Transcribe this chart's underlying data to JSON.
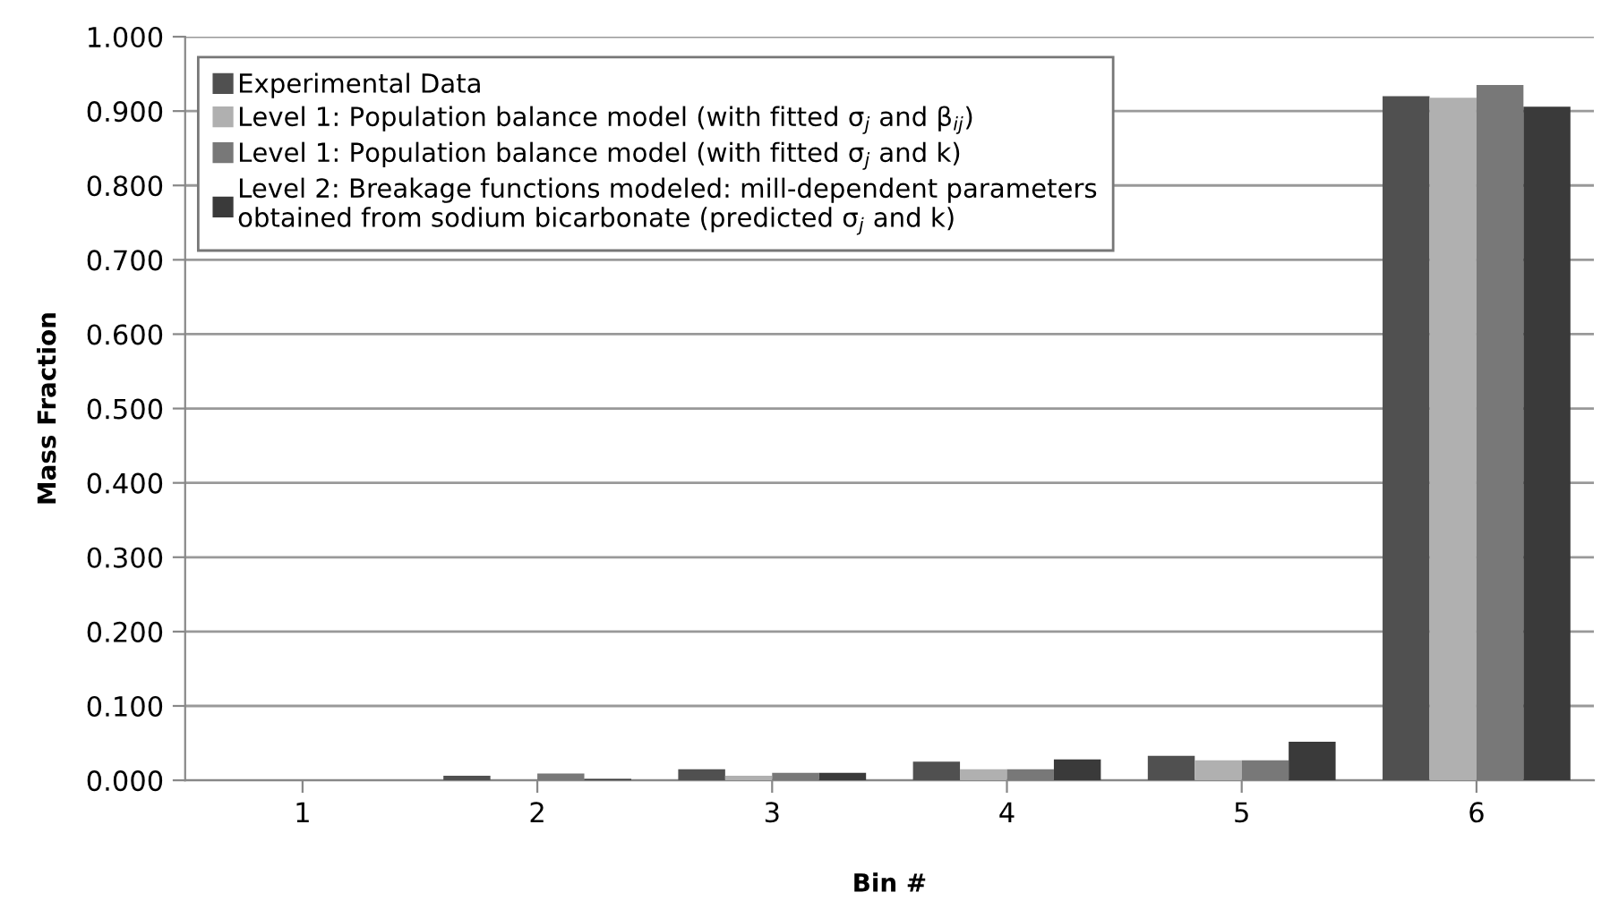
{
  "chart_data": {
    "type": "bar",
    "xlabel": "Bin #",
    "ylabel": "Mass Fraction",
    "categories": [
      "1",
      "2",
      "3",
      "4",
      "5",
      "6"
    ],
    "series": [
      {
        "name": "Experimental Data",
        "color": "#505050",
        "values": [
          0.0,
          0.006,
          0.015,
          0.025,
          0.033,
          0.92
        ]
      },
      {
        "name": "Level 1: Population balance model (with fitted σ$_{j}$ and β$_{ij}$)",
        "color": "#b0b0b0",
        "values": [
          null,
          null,
          0.006,
          0.015,
          0.027,
          0.918
        ]
      },
      {
        "name": "Level 1: Population balance model (with fitted σ$_{j}$ and k)",
        "color": "#787878",
        "values": [
          0.0,
          0.009,
          0.01,
          0.015,
          0.027,
          0.935
        ]
      },
      {
        "name": "Level 2: Breakage functions modeled: mill-dependent parameters\nobtained from sodium bicarbonate (predicted σ$_{j}$ and k)",
        "color": "#3a3a3a",
        "values": [
          0.0,
          0.002,
          0.01,
          0.028,
          0.052,
          0.906
        ]
      }
    ],
    "ylim": [
      0,
      1.0
    ],
    "yticks": [
      {
        "value": 0,
        "label": "0.000"
      },
      {
        "value": 0.1,
        "label": "0.100"
      },
      {
        "value": 0.2,
        "label": "0.200"
      },
      {
        "value": 0.3,
        "label": "0.300"
      },
      {
        "value": 0.4,
        "label": "0.400"
      },
      {
        "value": 0.5,
        "label": "0.500"
      },
      {
        "value": 0.6,
        "label": "0.600"
      },
      {
        "value": 0.7,
        "label": "0.700"
      },
      {
        "value": 0.8,
        "label": "0.800"
      },
      {
        "value": 0.9,
        "label": "0.900"
      },
      {
        "value": 1.0,
        "label": "1.000"
      }
    ],
    "grid": "y",
    "legend": "top left"
  }
}
